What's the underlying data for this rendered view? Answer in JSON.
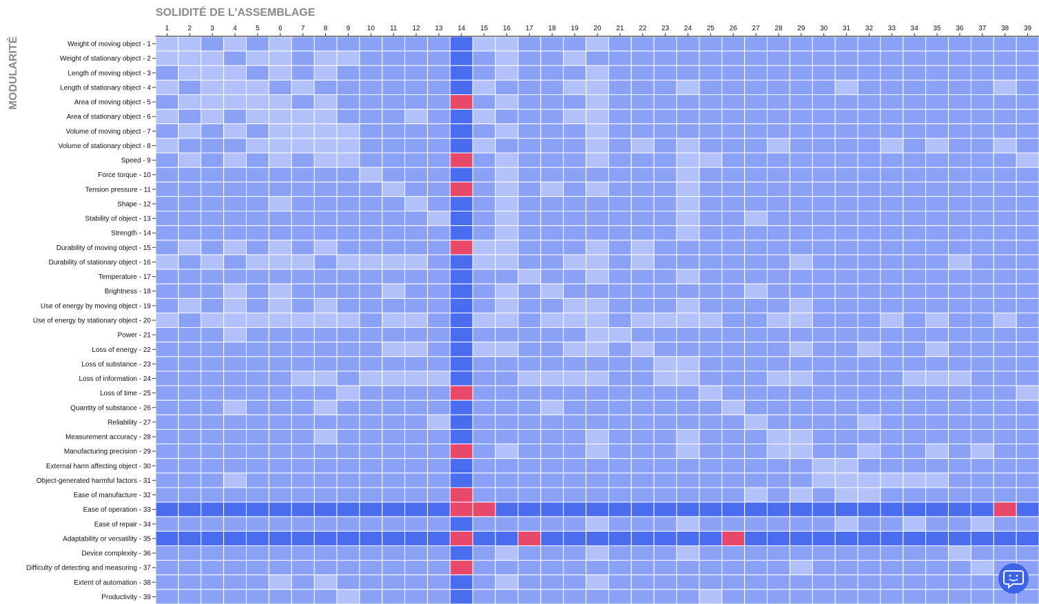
{
  "chart_data": {
    "type": "heatmap",
    "title": "SOLIDITÉ DE L'ASSEMBLAGE",
    "y_label": "MODULARITÉ",
    "colors": [
      "#b3c1fa",
      "#8aa1f6",
      "#4a6cef",
      "#e8496b"
    ],
    "x_categories": [
      "1",
      "2",
      "3",
      "4",
      "5",
      "6",
      "7",
      "8",
      "9",
      "10",
      "11",
      "12",
      "13",
      "14",
      "15",
      "16",
      "17",
      "18",
      "19",
      "20",
      "21",
      "22",
      "23",
      "24",
      "25",
      "26",
      "27",
      "28",
      "29",
      "30",
      "31",
      "32",
      "33",
      "34",
      "35",
      "36",
      "37",
      "38",
      "39"
    ],
    "y_categories": [
      "Weight of moving object - 1",
      "Weight of stationary object - 2",
      "Length of moving object - 3",
      "Length of stationary object - 4",
      "Area of moving object - 5",
      "Area of stationary object - 6",
      "Volume of moving object - 7",
      "Volume of stationary object - 8",
      "Speed - 9",
      "Force torque - 10",
      "Tension pressure - 11",
      "Shape - 12",
      "Stability of object - 13",
      "Strength - 14",
      "Durability of moving object - 15",
      "Durability of stationary object - 16",
      "Temperature - 17",
      "Brightness - 18",
      "Use of energy by moving object - 19",
      "Use of energy by stationary object - 20",
      "Power - 21",
      "Loss of energy - 22",
      "Loss of substance - 23",
      "Loss of information - 24",
      "Loss of time - 25",
      "Quantity of substance - 26",
      "Reliability - 27",
      "Measurement accuracy - 28",
      "Manufacturing precision - 29",
      "External harm affecting object - 30",
      "Object-generated harmful factors - 31",
      "Ease of manufacture - 32",
      "Ease of operation - 33",
      "Ease of repair - 34",
      "Adaptability or versatility - 35",
      "Device complexity - 36",
      "Difficulty of detecting and measuring - 37",
      "Extent of automation - 38",
      "Productivity - 39"
    ],
    "values": [
      [
        0,
        0,
        1,
        0,
        1,
        0,
        1,
        1,
        1,
        1,
        1,
        1,
        1,
        2,
        0,
        0,
        1,
        1,
        1,
        0,
        1,
        1,
        1,
        1,
        1,
        1,
        1,
        1,
        1,
        1,
        1,
        1,
        1,
        1,
        1,
        1,
        1,
        1,
        1
      ],
      [
        0,
        0,
        0,
        1,
        0,
        0,
        1,
        0,
        0,
        1,
        1,
        1,
        1,
        2,
        1,
        0,
        1,
        1,
        0,
        1,
        1,
        1,
        1,
        1,
        1,
        1,
        1,
        1,
        1,
        1,
        1,
        1,
        1,
        1,
        1,
        1,
        1,
        1,
        1
      ],
      [
        1,
        0,
        0,
        0,
        1,
        0,
        1,
        0,
        1,
        1,
        1,
        1,
        1,
        2,
        1,
        0,
        1,
        1,
        1,
        0,
        1,
        1,
        1,
        1,
        1,
        1,
        1,
        1,
        1,
        1,
        1,
        1,
        1,
        1,
        1,
        1,
        1,
        1,
        1
      ],
      [
        0,
        1,
        0,
        0,
        0,
        1,
        0,
        1,
        1,
        1,
        1,
        1,
        1,
        2,
        0,
        1,
        1,
        1,
        0,
        0,
        1,
        1,
        1,
        0,
        1,
        1,
        1,
        1,
        1,
        1,
        0,
        1,
        1,
        1,
        1,
        1,
        1,
        0,
        1
      ],
      [
        1,
        0,
        0,
        0,
        0,
        0,
        1,
        0,
        1,
        1,
        1,
        1,
        1,
        3,
        1,
        0,
        1,
        1,
        1,
        0,
        1,
        1,
        1,
        1,
        1,
        1,
        1,
        1,
        1,
        1,
        1,
        1,
        1,
        1,
        1,
        1,
        1,
        1,
        1
      ],
      [
        0,
        1,
        0,
        1,
        0,
        0,
        0,
        0,
        1,
        1,
        1,
        0,
        1,
        2,
        0,
        1,
        1,
        1,
        0,
        0,
        1,
        1,
        1,
        1,
        1,
        1,
        1,
        1,
        1,
        1,
        1,
        1,
        1,
        1,
        1,
        1,
        1,
        1,
        1
      ],
      [
        1,
        0,
        1,
        0,
        1,
        0,
        0,
        0,
        0,
        1,
        1,
        1,
        1,
        2,
        1,
        0,
        1,
        1,
        1,
        0,
        1,
        1,
        1,
        1,
        1,
        1,
        1,
        1,
        1,
        1,
        1,
        1,
        1,
        1,
        1,
        1,
        1,
        1,
        1
      ],
      [
        0,
        1,
        1,
        1,
        0,
        0,
        0,
        0,
        0,
        1,
        1,
        1,
        1,
        2,
        0,
        1,
        1,
        1,
        1,
        0,
        1,
        0,
        1,
        0,
        1,
        1,
        1,
        0,
        1,
        1,
        1,
        1,
        0,
        1,
        0,
        1,
        1,
        0,
        1
      ],
      [
        1,
        0,
        1,
        0,
        1,
        0,
        1,
        0,
        0,
        1,
        1,
        1,
        1,
        3,
        1,
        0,
        1,
        1,
        1,
        0,
        1,
        1,
        1,
        0,
        0,
        1,
        1,
        1,
        1,
        1,
        1,
        1,
        1,
        1,
        1,
        1,
        1,
        1,
        0
      ],
      [
        1,
        1,
        1,
        1,
        1,
        1,
        1,
        1,
        1,
        0,
        1,
        1,
        1,
        2,
        1,
        0,
        1,
        1,
        1,
        1,
        1,
        1,
        1,
        0,
        1,
        1,
        1,
        1,
        1,
        1,
        1,
        1,
        1,
        1,
        1,
        1,
        1,
        1,
        1
      ],
      [
        1,
        1,
        1,
        1,
        1,
        1,
        1,
        1,
        1,
        1,
        0,
        1,
        1,
        3,
        1,
        0,
        1,
        0,
        1,
        0,
        1,
        1,
        1,
        0,
        1,
        1,
        1,
        1,
        1,
        1,
        1,
        1,
        1,
        1,
        1,
        1,
        1,
        1,
        1
      ],
      [
        1,
        1,
        1,
        1,
        1,
        0,
        1,
        1,
        1,
        1,
        1,
        0,
        1,
        2,
        1,
        0,
        1,
        1,
        1,
        1,
        1,
        1,
        1,
        0,
        1,
        1,
        1,
        1,
        1,
        1,
        1,
        1,
        1,
        1,
        1,
        1,
        1,
        1,
        1
      ],
      [
        1,
        1,
        1,
        1,
        1,
        1,
        1,
        1,
        1,
        1,
        1,
        1,
        0,
        2,
        1,
        0,
        1,
        1,
        1,
        1,
        1,
        1,
        1,
        0,
        1,
        1,
        0,
        1,
        1,
        1,
        1,
        1,
        1,
        1,
        1,
        1,
        1,
        1,
        1
      ],
      [
        1,
        1,
        1,
        1,
        1,
        1,
        1,
        1,
        1,
        1,
        1,
        1,
        1,
        2,
        1,
        0,
        1,
        1,
        1,
        1,
        1,
        1,
        1,
        0,
        1,
        1,
        1,
        1,
        1,
        1,
        1,
        1,
        1,
        1,
        1,
        1,
        1,
        1,
        1
      ],
      [
        1,
        0,
        1,
        0,
        1,
        0,
        1,
        0,
        1,
        1,
        1,
        1,
        1,
        3,
        0,
        0,
        1,
        1,
        1,
        0,
        1,
        0,
        1,
        1,
        1,
        1,
        1,
        1,
        1,
        1,
        1,
        1,
        1,
        1,
        1,
        1,
        1,
        1,
        1
      ],
      [
        0,
        1,
        0,
        1,
        0,
        0,
        0,
        1,
        0,
        0,
        0,
        0,
        1,
        2,
        0,
        0,
        1,
        1,
        0,
        0,
        1,
        0,
        1,
        1,
        1,
        1,
        1,
        1,
        0,
        1,
        1,
        1,
        1,
        1,
        1,
        0,
        1,
        1,
        1
      ],
      [
        1,
        1,
        1,
        1,
        1,
        1,
        1,
        1,
        1,
        1,
        1,
        1,
        1,
        2,
        1,
        1,
        0,
        1,
        1,
        0,
        1,
        1,
        1,
        0,
        1,
        1,
        1,
        1,
        1,
        1,
        1,
        1,
        1,
        1,
        1,
        1,
        1,
        1,
        1
      ],
      [
        1,
        1,
        1,
        0,
        1,
        0,
        1,
        1,
        1,
        1,
        0,
        1,
        1,
        2,
        1,
        0,
        1,
        0,
        1,
        1,
        1,
        1,
        1,
        1,
        1,
        1,
        0,
        1,
        1,
        1,
        1,
        1,
        1,
        1,
        1,
        1,
        1,
        1,
        1
      ],
      [
        1,
        0,
        1,
        0,
        1,
        0,
        1,
        0,
        1,
        1,
        1,
        1,
        1,
        2,
        1,
        0,
        1,
        1,
        0,
        0,
        1,
        1,
        1,
        0,
        1,
        1,
        1,
        1,
        0,
        1,
        1,
        1,
        1,
        1,
        1,
        1,
        1,
        1,
        1
      ],
      [
        0,
        1,
        0,
        0,
        0,
        0,
        0,
        0,
        0,
        1,
        0,
        0,
        1,
        2,
        0,
        0,
        1,
        0,
        0,
        0,
        1,
        0,
        0,
        0,
        0,
        1,
        1,
        0,
        0,
        1,
        1,
        1,
        0,
        1,
        0,
        1,
        1,
        0,
        1
      ],
      [
        1,
        1,
        1,
        0,
        1,
        1,
        1,
        1,
        1,
        1,
        1,
        1,
        1,
        2,
        1,
        1,
        1,
        1,
        1,
        0,
        0,
        1,
        1,
        1,
        1,
        1,
        1,
        1,
        1,
        1,
        1,
        1,
        1,
        1,
        1,
        1,
        1,
        1,
        1
      ],
      [
        1,
        1,
        1,
        1,
        1,
        1,
        1,
        1,
        1,
        1,
        0,
        0,
        1,
        2,
        0,
        0,
        1,
        1,
        0,
        0,
        1,
        0,
        1,
        1,
        1,
        1,
        1,
        1,
        0,
        1,
        1,
        0,
        1,
        1,
        0,
        1,
        1,
        1,
        1
      ],
      [
        1,
        1,
        1,
        1,
        1,
        1,
        1,
        1,
        1,
        1,
        1,
        1,
        1,
        2,
        1,
        1,
        1,
        1,
        1,
        1,
        1,
        1,
        0,
        0,
        1,
        1,
        1,
        1,
        1,
        1,
        1,
        1,
        1,
        1,
        1,
        1,
        1,
        1,
        1
      ],
      [
        1,
        1,
        1,
        1,
        1,
        1,
        0,
        0,
        1,
        0,
        0,
        0,
        0,
        2,
        1,
        1,
        0,
        0,
        0,
        0,
        1,
        1,
        0,
        0,
        1,
        1,
        1,
        0,
        0,
        1,
        1,
        1,
        1,
        0,
        0,
        0,
        1,
        1,
        1
      ],
      [
        1,
        1,
        1,
        1,
        1,
        1,
        1,
        1,
        0,
        1,
        1,
        1,
        1,
        3,
        1,
        1,
        1,
        1,
        1,
        1,
        1,
        1,
        1,
        1,
        0,
        1,
        1,
        1,
        1,
        1,
        1,
        1,
        1,
        1,
        1,
        1,
        1,
        1,
        0
      ],
      [
        1,
        1,
        1,
        0,
        1,
        1,
        1,
        0,
        1,
        1,
        1,
        1,
        1,
        2,
        1,
        1,
        1,
        0,
        1,
        1,
        1,
        1,
        1,
        1,
        1,
        0,
        1,
        1,
        1,
        1,
        1,
        1,
        1,
        1,
        1,
        1,
        1,
        1,
        1
      ],
      [
        1,
        1,
        1,
        1,
        1,
        1,
        1,
        1,
        1,
        1,
        1,
        1,
        0,
        2,
        1,
        1,
        1,
        1,
        1,
        1,
        1,
        1,
        1,
        1,
        1,
        1,
        0,
        1,
        1,
        1,
        1,
        0,
        1,
        1,
        1,
        1,
        1,
        1,
        1
      ],
      [
        1,
        1,
        1,
        1,
        1,
        1,
        1,
        0,
        1,
        1,
        1,
        1,
        1,
        2,
        1,
        1,
        1,
        1,
        1,
        0,
        1,
        1,
        1,
        0,
        1,
        1,
        1,
        0,
        0,
        1,
        1,
        1,
        1,
        1,
        1,
        1,
        1,
        1,
        1
      ],
      [
        1,
        1,
        1,
        1,
        1,
        1,
        1,
        1,
        1,
        1,
        1,
        1,
        1,
        3,
        1,
        0,
        1,
        1,
        1,
        0,
        1,
        1,
        1,
        0,
        1,
        1,
        1,
        0,
        0,
        1,
        1,
        0,
        1,
        1,
        0,
        1,
        0,
        1,
        1
      ],
      [
        1,
        1,
        1,
        1,
        1,
        1,
        1,
        1,
        1,
        1,
        1,
        1,
        1,
        2,
        1,
        1,
        1,
        1,
        1,
        1,
        1,
        1,
        1,
        1,
        1,
        1,
        1,
        1,
        1,
        0,
        0,
        1,
        1,
        1,
        1,
        1,
        1,
        1,
        1
      ],
      [
        1,
        1,
        1,
        0,
        1,
        1,
        1,
        1,
        1,
        1,
        1,
        1,
        1,
        2,
        1,
        1,
        1,
        1,
        1,
        1,
        1,
        1,
        1,
        1,
        1,
        1,
        1,
        1,
        1,
        0,
        0,
        0,
        0,
        0,
        0,
        1,
        1,
        1,
        1
      ],
      [
        1,
        1,
        1,
        1,
        1,
        1,
        1,
        1,
        1,
        1,
        1,
        1,
        1,
        3,
        1,
        1,
        1,
        1,
        1,
        1,
        1,
        1,
        1,
        1,
        1,
        1,
        0,
        1,
        0,
        1,
        0,
        0,
        1,
        1,
        1,
        1,
        1,
        1,
        1
      ],
      [
        2,
        2,
        2,
        2,
        2,
        2,
        2,
        2,
        2,
        2,
        2,
        2,
        2,
        3,
        3,
        2,
        2,
        2,
        2,
        2,
        2,
        2,
        2,
        2,
        2,
        2,
        2,
        2,
        2,
        2,
        2,
        2,
        2,
        2,
        2,
        2,
        2,
        3,
        2
      ],
      [
        1,
        1,
        1,
        1,
        1,
        1,
        1,
        1,
        1,
        1,
        1,
        1,
        1,
        2,
        1,
        1,
        1,
        1,
        1,
        0,
        1,
        1,
        1,
        0,
        1,
        1,
        1,
        1,
        1,
        1,
        0,
        1,
        1,
        0,
        1,
        1,
        0,
        1,
        1
      ],
      [
        2,
        2,
        2,
        2,
        2,
        2,
        2,
        2,
        2,
        2,
        2,
        2,
        2,
        3,
        2,
        2,
        3,
        2,
        2,
        2,
        2,
        2,
        2,
        2,
        2,
        3,
        2,
        2,
        2,
        2,
        2,
        2,
        2,
        2,
        2,
        2,
        2,
        2,
        2
      ],
      [
        1,
        1,
        1,
        1,
        1,
        1,
        1,
        1,
        1,
        1,
        1,
        1,
        1,
        2,
        1,
        0,
        1,
        1,
        1,
        0,
        1,
        1,
        1,
        0,
        1,
        1,
        1,
        1,
        1,
        1,
        1,
        1,
        1,
        1,
        1,
        0,
        1,
        1,
        1
      ],
      [
        1,
        1,
        1,
        1,
        1,
        1,
        1,
        1,
        1,
        1,
        1,
        1,
        1,
        3,
        1,
        1,
        1,
        1,
        1,
        1,
        1,
        1,
        1,
        1,
        1,
        1,
        1,
        1,
        0,
        1,
        1,
        1,
        1,
        1,
        1,
        1,
        0,
        1,
        1
      ],
      [
        1,
        1,
        1,
        1,
        1,
        0,
        1,
        0,
        1,
        1,
        1,
        1,
        1,
        2,
        1,
        0,
        1,
        1,
        1,
        0,
        1,
        1,
        1,
        1,
        1,
        1,
        1,
        1,
        1,
        1,
        1,
        1,
        1,
        1,
        1,
        1,
        1,
        1,
        1
      ],
      [
        1,
        1,
        1,
        1,
        1,
        1,
        1,
        1,
        0,
        1,
        1,
        1,
        1,
        2,
        1,
        1,
        1,
        1,
        1,
        1,
        1,
        1,
        1,
        1,
        0,
        1,
        1,
        1,
        1,
        1,
        1,
        1,
        1,
        1,
        1,
        1,
        1,
        1,
        1
      ]
    ]
  }
}
